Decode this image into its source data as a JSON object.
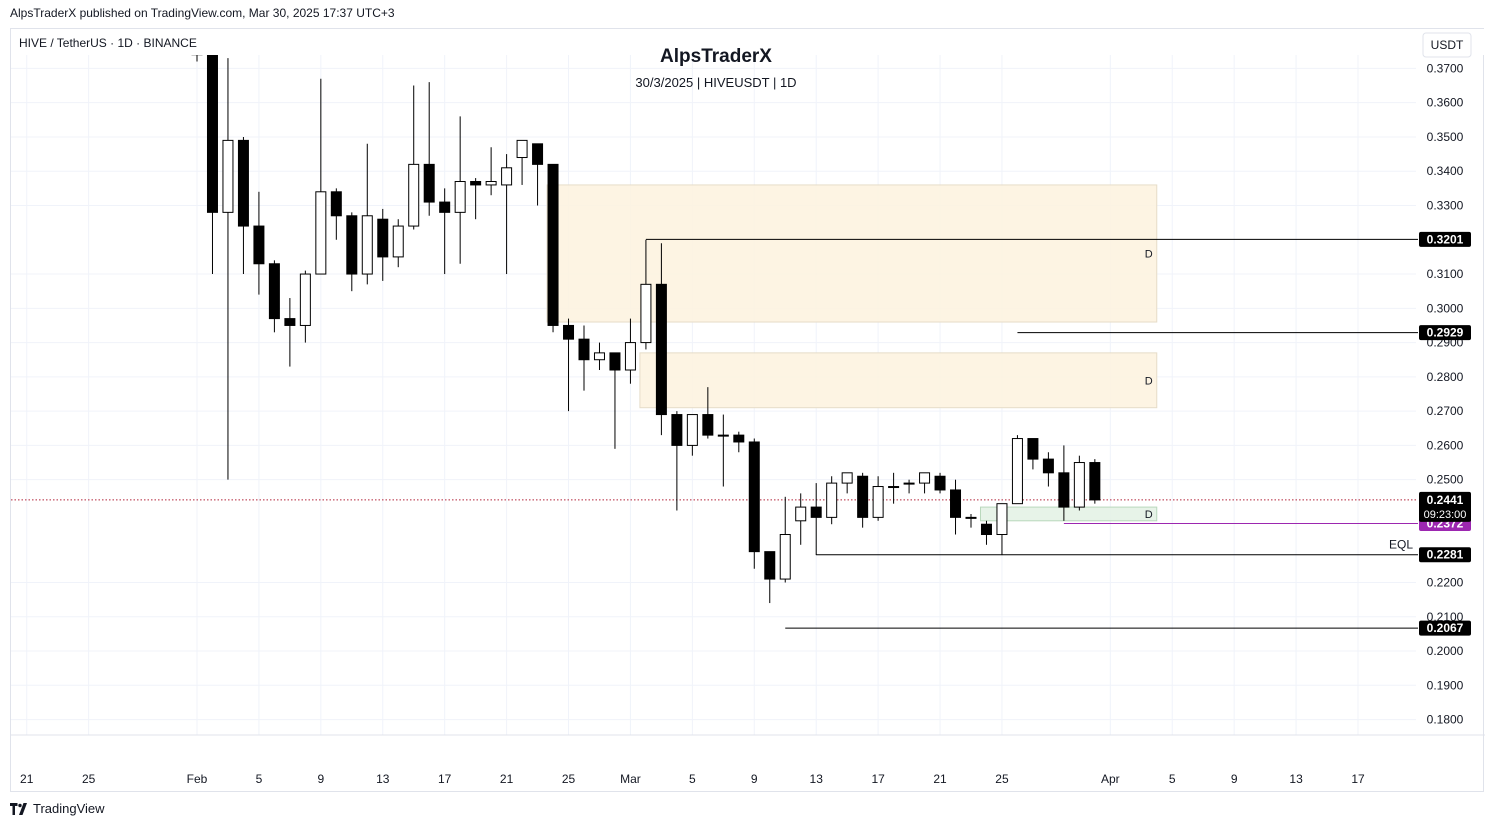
{
  "header": {
    "published_line": "AlpsTraderX published on TradingView.com, Mar 30, 2025 17:37 UTC+3"
  },
  "symbol": {
    "line": "HIVE / TetherUS · 1D · BINANCE"
  },
  "title": "AlpsTraderX",
  "subtitle": "30/3/2025 | HIVEUSDT | 1D",
  "currency": "USDT",
  "footer": {
    "brand": "TradingView"
  },
  "colors": {
    "bull_body": "#ffffff",
    "bear_body": "#000000",
    "wick": "#000000",
    "zone_supply": "#fdf2de",
    "zone_demand": "#e3f1e4",
    "purple": "#9c27b0",
    "current_price_line": "#b2243a"
  },
  "chart_data": {
    "type": "candlestick",
    "x_axis": {
      "tick_labels": [
        "21",
        "25",
        "Feb",
        "5",
        "9",
        "13",
        "17",
        "21",
        "25",
        "Mar",
        "5",
        "9",
        "13",
        "17",
        "21",
        "25",
        "Apr",
        "5",
        "9",
        "13",
        "17"
      ],
      "tick_days": [
        -11,
        -7,
        0,
        4,
        8,
        12,
        16,
        20,
        24,
        28,
        32,
        36,
        40,
        44,
        48,
        52,
        59,
        63,
        67,
        71,
        75
      ]
    },
    "y_axis": {
      "range": [
        0.1755,
        0.3815
      ],
      "tick_labels": [
        "0.3700",
        "0.3600",
        "0.3500",
        "0.3400",
        "0.3300",
        "0.3100",
        "0.3000",
        "0.2900",
        "0.2800",
        "0.2700",
        "0.2600",
        "0.2500",
        "0.2200",
        "0.2100",
        "0.2000",
        "0.1900",
        "0.1800"
      ],
      "tick_values": [
        0.37,
        0.36,
        0.35,
        0.34,
        0.33,
        0.31,
        0.3,
        0.29,
        0.28,
        0.27,
        0.26,
        0.25,
        0.22,
        0.21,
        0.2,
        0.19,
        0.18
      ]
    },
    "candles": [
      {
        "day": 0,
        "o": 0.39,
        "h": 0.396,
        "l": 0.372,
        "c": 0.374
      },
      {
        "day": 1,
        "o": 0.374,
        "h": 0.377,
        "l": 0.31,
        "c": 0.328
      },
      {
        "day": 2,
        "o": 0.328,
        "h": 0.373,
        "l": 0.25,
        "c": 0.349
      },
      {
        "day": 3,
        "o": 0.349,
        "h": 0.35,
        "l": 0.31,
        "c": 0.324
      },
      {
        "day": 4,
        "o": 0.324,
        "h": 0.334,
        "l": 0.304,
        "c": 0.313
      },
      {
        "day": 5,
        "o": 0.313,
        "h": 0.314,
        "l": 0.293,
        "c": 0.297
      },
      {
        "day": 6,
        "o": 0.297,
        "h": 0.303,
        "l": 0.283,
        "c": 0.295
      },
      {
        "day": 7,
        "o": 0.295,
        "h": 0.311,
        "l": 0.29,
        "c": 0.31
      },
      {
        "day": 8,
        "o": 0.31,
        "h": 0.367,
        "l": 0.31,
        "c": 0.334
      },
      {
        "day": 9,
        "o": 0.334,
        "h": 0.335,
        "l": 0.32,
        "c": 0.327
      },
      {
        "day": 10,
        "o": 0.327,
        "h": 0.328,
        "l": 0.305,
        "c": 0.31
      },
      {
        "day": 11,
        "o": 0.31,
        "h": 0.348,
        "l": 0.307,
        "c": 0.327
      },
      {
        "day": 12,
        "o": 0.326,
        "h": 0.329,
        "l": 0.308,
        "c": 0.315
      },
      {
        "day": 13,
        "o": 0.315,
        "h": 0.326,
        "l": 0.312,
        "c": 0.324
      },
      {
        "day": 14,
        "o": 0.324,
        "h": 0.365,
        "l": 0.323,
        "c": 0.342
      },
      {
        "day": 15,
        "o": 0.342,
        "h": 0.366,
        "l": 0.327,
        "c": 0.331
      },
      {
        "day": 16,
        "o": 0.331,
        "h": 0.335,
        "l": 0.31,
        "c": 0.328
      },
      {
        "day": 17,
        "o": 0.328,
        "h": 0.356,
        "l": 0.313,
        "c": 0.337
      },
      {
        "day": 18,
        "o": 0.337,
        "h": 0.338,
        "l": 0.326,
        "c": 0.336
      },
      {
        "day": 19,
        "o": 0.336,
        "h": 0.347,
        "l": 0.333,
        "c": 0.337
      },
      {
        "day": 20,
        "o": 0.336,
        "h": 0.345,
        "l": 0.31,
        "c": 0.341
      },
      {
        "day": 21,
        "o": 0.344,
        "h": 0.349,
        "l": 0.336,
        "c": 0.349
      },
      {
        "day": 22,
        "o": 0.348,
        "h": 0.348,
        "l": 0.33,
        "c": 0.342
      },
      {
        "day": 23,
        "o": 0.342,
        "h": 0.342,
        "l": 0.293,
        "c": 0.295
      },
      {
        "day": 24,
        "o": 0.295,
        "h": 0.297,
        "l": 0.27,
        "c": 0.291
      },
      {
        "day": 25,
        "o": 0.291,
        "h": 0.295,
        "l": 0.276,
        "c": 0.285
      },
      {
        "day": 26,
        "o": 0.285,
        "h": 0.29,
        "l": 0.282,
        "c": 0.287
      },
      {
        "day": 27,
        "o": 0.287,
        "h": 0.287,
        "l": 0.259,
        "c": 0.282
      },
      {
        "day": 28,
        "o": 0.282,
        "h": 0.297,
        "l": 0.278,
        "c": 0.29
      },
      {
        "day": 29,
        "o": 0.29,
        "h": 0.32,
        "l": 0.288,
        "c": 0.307
      },
      {
        "day": 30,
        "o": 0.307,
        "h": 0.319,
        "l": 0.263,
        "c": 0.269
      },
      {
        "day": 31,
        "o": 0.269,
        "h": 0.27,
        "l": 0.241,
        "c": 0.26
      },
      {
        "day": 32,
        "o": 0.26,
        "h": 0.269,
        "l": 0.257,
        "c": 0.269
      },
      {
        "day": 33,
        "o": 0.269,
        "h": 0.277,
        "l": 0.262,
        "c": 0.263
      },
      {
        "day": 34,
        "o": 0.263,
        "h": 0.269,
        "l": 0.248,
        "c": 0.263
      },
      {
        "day": 35,
        "o": 0.263,
        "h": 0.264,
        "l": 0.258,
        "c": 0.261
      },
      {
        "day": 36,
        "o": 0.261,
        "h": 0.262,
        "l": 0.224,
        "c": 0.229
      },
      {
        "day": 37,
        "o": 0.229,
        "h": 0.229,
        "l": 0.214,
        "c": 0.221
      },
      {
        "day": 38,
        "o": 0.221,
        "h": 0.245,
        "l": 0.22,
        "c": 0.234
      },
      {
        "day": 39,
        "o": 0.238,
        "h": 0.246,
        "l": 0.231,
        "c": 0.242
      },
      {
        "day": 40,
        "o": 0.242,
        "h": 0.249,
        "l": 0.228,
        "c": 0.239
      },
      {
        "day": 41,
        "o": 0.239,
        "h": 0.251,
        "l": 0.237,
        "c": 0.249
      },
      {
        "day": 42,
        "o": 0.249,
        "h": 0.252,
        "l": 0.246,
        "c": 0.252
      },
      {
        "day": 43,
        "o": 0.251,
        "h": 0.252,
        "l": 0.236,
        "c": 0.239
      },
      {
        "day": 44,
        "o": 0.239,
        "h": 0.251,
        "l": 0.238,
        "c": 0.248
      },
      {
        "day": 45,
        "o": 0.248,
        "h": 0.252,
        "l": 0.243,
        "c": 0.248
      },
      {
        "day": 46,
        "o": 0.249,
        "h": 0.25,
        "l": 0.246,
        "c": 0.249
      },
      {
        "day": 47,
        "o": 0.249,
        "h": 0.252,
        "l": 0.246,
        "c": 0.252
      },
      {
        "day": 48,
        "o": 0.251,
        "h": 0.252,
        "l": 0.246,
        "c": 0.247
      },
      {
        "day": 49,
        "o": 0.247,
        "h": 0.25,
        "l": 0.234,
        "c": 0.239
      },
      {
        "day": 50,
        "o": 0.239,
        "h": 0.24,
        "l": 0.236,
        "c": 0.239
      },
      {
        "day": 51,
        "o": 0.237,
        "h": 0.238,
        "l": 0.231,
        "c": 0.234
      },
      {
        "day": 52,
        "o": 0.234,
        "h": 0.243,
        "l": 0.228,
        "c": 0.243
      },
      {
        "day": 53,
        "o": 0.243,
        "h": 0.263,
        "l": 0.243,
        "c": 0.262
      },
      {
        "day": 54,
        "o": 0.262,
        "h": 0.262,
        "l": 0.253,
        "c": 0.256
      },
      {
        "day": 55,
        "o": 0.256,
        "h": 0.258,
        "l": 0.248,
        "c": 0.252
      },
      {
        "day": 56,
        "o": 0.252,
        "h": 0.26,
        "l": 0.238,
        "c": 0.242
      },
      {
        "day": 57,
        "o": 0.242,
        "h": 0.257,
        "l": 0.241,
        "c": 0.255
      },
      {
        "day": 58,
        "o": 0.255,
        "h": 0.256,
        "l": 0.243,
        "c": 0.2441
      }
    ],
    "zones": [
      {
        "kind": "supply",
        "label": "D",
        "from_day": 23,
        "to_day": 62,
        "top": 0.336,
        "bottom": 0.296
      },
      {
        "kind": "supply",
        "label": "D",
        "from_day": 29,
        "to_day": 62,
        "top": 0.287,
        "bottom": 0.271
      },
      {
        "kind": "demand",
        "label": "D",
        "from_day": 51,
        "to_day": 62,
        "top": 0.242,
        "bottom": 0.238
      }
    ],
    "levels": [
      {
        "price": 0.3201,
        "label": "0.3201",
        "from_day": 29,
        "color": "#000000"
      },
      {
        "price": 0.2929,
        "label": "0.2929",
        "from_day": 53,
        "color": "#000000"
      },
      {
        "price": 0.2372,
        "label": "0.2372",
        "from_day": 56,
        "color": "#9c27b0"
      },
      {
        "price": 0.2281,
        "label": "0.2281",
        "from_day": 40,
        "color": "#000000",
        "annotation": "EQL"
      },
      {
        "price": 0.2067,
        "label": "0.2067",
        "from_day": 38,
        "color": "#000000"
      }
    ],
    "current_price": {
      "value": 0.2441,
      "label": "0.2441",
      "countdown": "09:23:00"
    }
  }
}
